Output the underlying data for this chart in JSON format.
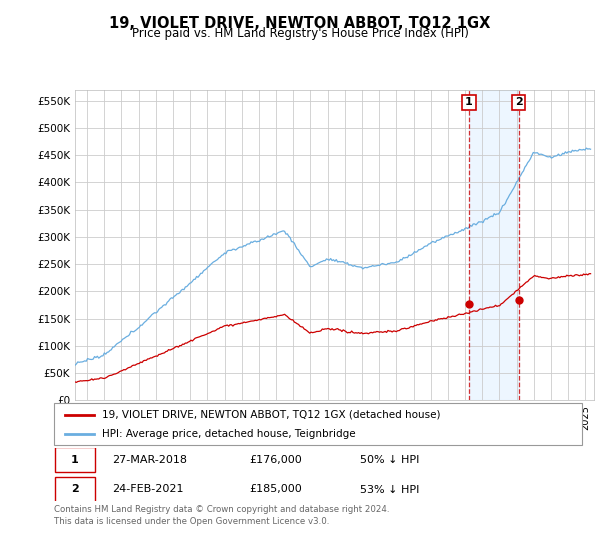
{
  "title": "19, VIOLET DRIVE, NEWTON ABBOT, TQ12 1GX",
  "subtitle": "Price paid vs. HM Land Registry's House Price Index (HPI)",
  "ylabel_ticks": [
    "£0",
    "£50K",
    "£100K",
    "£150K",
    "£200K",
    "£250K",
    "£300K",
    "£350K",
    "£400K",
    "£450K",
    "£500K",
    "£550K"
  ],
  "ytick_values": [
    0,
    50000,
    100000,
    150000,
    200000,
    250000,
    300000,
    350000,
    400000,
    450000,
    500000,
    550000
  ],
  "ylim": [
    0,
    570000
  ],
  "xlim_start": 1995.3,
  "xlim_end": 2025.5,
  "hpi_color": "#6aaee0",
  "price_color": "#cc0000",
  "marker1_date": 2018.23,
  "marker1_price": 176000,
  "marker2_date": 2021.12,
  "marker2_price": 185000,
  "legend_line1": "19, VIOLET DRIVE, NEWTON ABBOT, TQ12 1GX (detached house)",
  "legend_line2": "HPI: Average price, detached house, Teignbridge",
  "table_row1": [
    "1",
    "27-MAR-2018",
    "£176,000",
    "50% ↓ HPI"
  ],
  "table_row2": [
    "2",
    "24-FEB-2021",
    "£185,000",
    "53% ↓ HPI"
  ],
  "footnote": "Contains HM Land Registry data © Crown copyright and database right 2024.\nThis data is licensed under the Open Government Licence v3.0.",
  "background_color": "#ffffff",
  "grid_color": "#cccccc",
  "highlight_rect_color": "#ddeeff",
  "highlight_alpha": 0.5
}
